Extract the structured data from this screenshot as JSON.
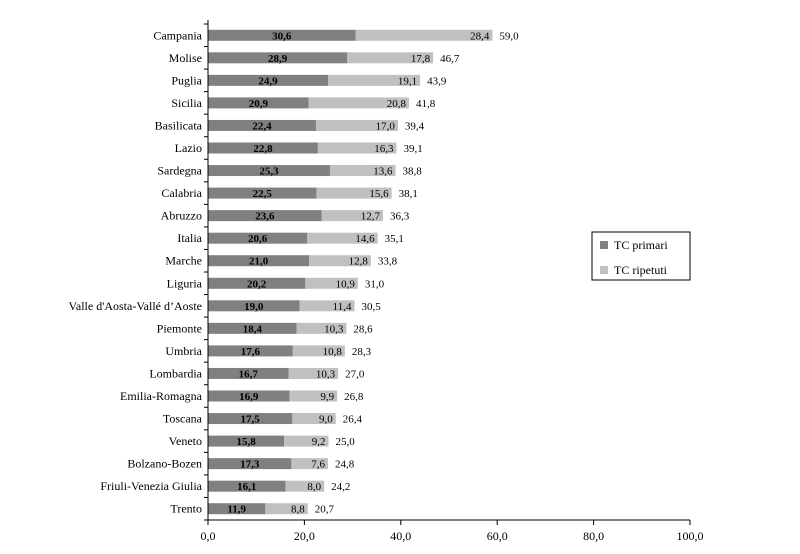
{
  "chart_data": {
    "type": "bar",
    "orientation": "horizontal",
    "stacked": true,
    "categories": [
      "Campania",
      "Molise",
      "Puglia",
      "Sicilia",
      "Basilicata",
      "Lazio",
      "Sardegna",
      "Calabria",
      "Abruzzo",
      "Italia",
      "Marche",
      "Liguria",
      "Valle d'Aosta-Vallé d’Aoste",
      "Piemonte",
      "Umbria",
      "Lombardia",
      "Emilia-Romagna",
      "Toscana",
      "Veneto",
      "Bolzano-Bozen",
      "Friuli-Venezia Giulia",
      "Trento"
    ],
    "series": [
      {
        "name": "TC primari",
        "color": "#808080",
        "values": [
          30.6,
          28.9,
          24.9,
          20.9,
          22.4,
          22.8,
          25.3,
          22.5,
          23.6,
          20.6,
          21.0,
          20.2,
          19.0,
          18.4,
          17.6,
          16.7,
          16.9,
          17.5,
          15.8,
          17.3,
          16.1,
          11.9
        ],
        "labels": [
          "30,6",
          "28,9",
          "24,9",
          "20,9",
          "22,4",
          "22,8",
          "25,3",
          "22,5",
          "23,6",
          "20,6",
          "21,0",
          "20,2",
          "19,0",
          "18,4",
          "17,6",
          "16,7",
          "16,9",
          "17,5",
          "15,8",
          "17,3",
          "16,1",
          "11,9"
        ]
      },
      {
        "name": "TC ripetuti",
        "color": "#c0c0c0",
        "values": [
          28.4,
          17.8,
          19.1,
          20.8,
          17.0,
          16.3,
          13.6,
          15.6,
          12.7,
          14.6,
          12.8,
          10.9,
          11.4,
          10.3,
          10.8,
          10.3,
          9.9,
          9.0,
          9.2,
          7.6,
          8.0,
          8.8
        ],
        "labels": [
          "28,4",
          "17,8",
          "19,1",
          "20,8",
          "17,0",
          "16,3",
          "13,6",
          "15,6",
          "12,7",
          "14,6",
          "12,8",
          "10,9",
          "11,4",
          "10,3",
          "10,8",
          "10,3",
          "9,9",
          "9,0",
          "9,2",
          "7,6",
          "8,0",
          "8,8"
        ]
      }
    ],
    "totals": [
      59.0,
      46.7,
      43.9,
      41.8,
      39.4,
      39.1,
      38.8,
      38.1,
      36.3,
      35.1,
      33.8,
      31.0,
      30.5,
      28.6,
      28.3,
      27.0,
      26.8,
      26.4,
      25.0,
      24.8,
      24.2,
      20.7
    ],
    "total_labels": [
      "59,0",
      "46,7",
      "43,9",
      "41,8",
      "39,4",
      "39,1",
      "38,8",
      "38,1",
      "36,3",
      "35,1",
      "33,8",
      "31,0",
      "30,5",
      "28,6",
      "28,3",
      "27,0",
      "26,8",
      "26,4",
      "25,0",
      "24,8",
      "24,2",
      "20,7"
    ],
    "xlim": [
      0,
      100
    ],
    "xticks": [
      0,
      20,
      40,
      60,
      80,
      100
    ],
    "xtick_labels": [
      "0,0",
      "20,0",
      "40,0",
      "60,0",
      "80,0",
      "100,0"
    ],
    "grid": false,
    "legend_position": "right"
  }
}
